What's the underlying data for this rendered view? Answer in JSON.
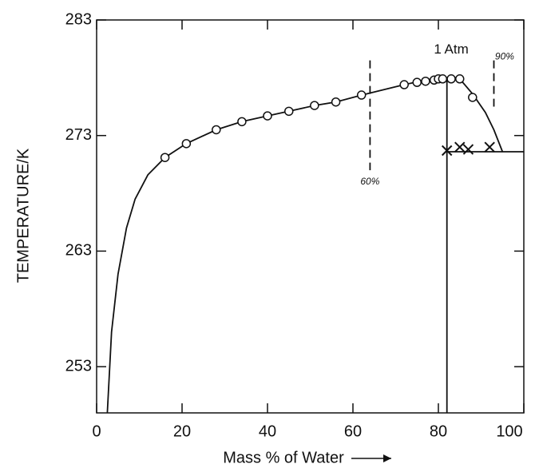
{
  "chart_data": {
    "type": "line",
    "xlabel": "Mass % of Water",
    "ylabel": "TEMPERATURE/K",
    "xlim": [
      0,
      100
    ],
    "ylim": [
      249,
      283
    ],
    "xticks": [
      0,
      20,
      40,
      60,
      80,
      100
    ],
    "yticks": [
      253,
      263,
      273,
      283
    ],
    "series": [
      {
        "color": "#111111",
        "marker": "none",
        "style": "solid",
        "x": [
          2.5,
          3.5,
          5,
          7,
          9,
          12,
          16,
          21,
          28,
          34,
          40,
          45,
          51,
          56,
          62,
          72,
          77,
          81,
          85,
          88,
          91,
          93,
          95
        ],
        "values": [
          249,
          256,
          261,
          265,
          267.5,
          269.6,
          271.1,
          272.3,
          273.5,
          274.2,
          274.7,
          275.1,
          275.6,
          275.9,
          276.5,
          277.4,
          277.8,
          277.9,
          277.9,
          276.6,
          275,
          273.5,
          271.6
        ]
      },
      {
        "color": "#111111",
        "marker": "circle",
        "style": "none",
        "x": [
          16,
          21,
          28,
          34,
          40,
          45,
          51,
          56,
          62,
          72,
          75,
          77,
          79,
          80,
          81,
          83,
          85,
          88
        ],
        "values": [
          271.1,
          272.3,
          273.5,
          274.2,
          274.7,
          275.1,
          275.6,
          275.9,
          276.5,
          277.4,
          277.6,
          277.7,
          277.8,
          277.9,
          277.9,
          277.9,
          277.9,
          276.3
        ]
      },
      {
        "color": "#111111",
        "marker": "cross",
        "style": "none",
        "x": [
          82,
          85,
          87,
          92
        ],
        "values": [
          271.7,
          272.0,
          271.8,
          272.0
        ]
      },
      {
        "color": "#111111",
        "marker": "none",
        "style": "solid",
        "x": [
          82,
          82
        ],
        "values": [
          249,
          277.9
        ]
      },
      {
        "color": "#111111",
        "marker": "none",
        "style": "solid",
        "x": [
          82,
          100
        ],
        "values": [
          271.6,
          271.6
        ]
      },
      {
        "color": "#111111",
        "marker": "none",
        "style": "dashed",
        "x": [
          64,
          64
        ],
        "values": [
          279.5,
          270
        ]
      },
      {
        "color": "#111111",
        "marker": "none",
        "style": "dashed",
        "x": [
          93,
          93
        ],
        "values": [
          279.5,
          275.5
        ]
      }
    ],
    "annotations": [
      {
        "text": "1 Atm",
        "x": 83,
        "y": 280.4
      },
      {
        "text": "60%",
        "x": 64,
        "y": 269
      },
      {
        "text": "90%",
        "x": 95.5,
        "y": 279.8
      }
    ]
  }
}
